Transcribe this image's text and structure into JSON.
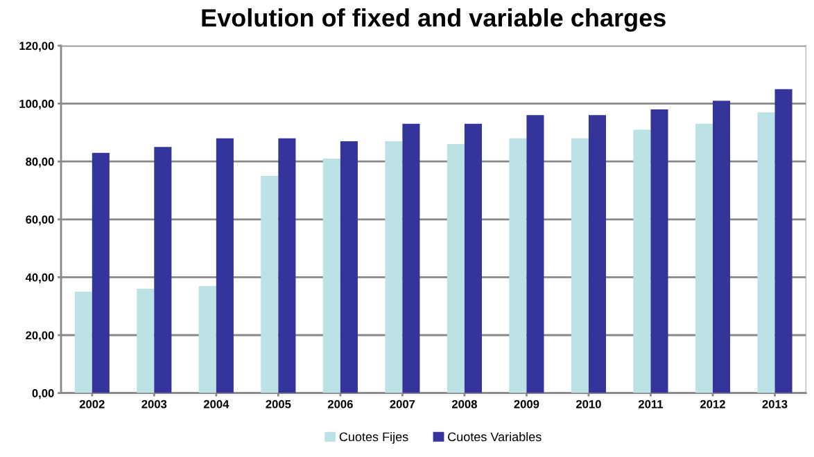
{
  "chart_data": {
    "type": "bar",
    "title": "Evolution of fixed and variable charges",
    "categories": [
      "2002",
      "2003",
      "2004",
      "2005",
      "2006",
      "2007",
      "2008",
      "2009",
      "2010",
      "2011",
      "2012",
      "2013"
    ],
    "series": [
      {
        "name": "Cuotes Fijes",
        "color": "#bce2e6",
        "values": [
          35,
          36,
          37,
          75,
          81,
          87,
          86,
          88,
          88,
          91,
          93,
          97
        ]
      },
      {
        "name": "Cuotes Variables",
        "color": "#34349a",
        "values": [
          83,
          85,
          88,
          88,
          87,
          93,
          93,
          96,
          96,
          98,
          101,
          105
        ]
      }
    ],
    "ylim": [
      0,
      120
    ],
    "yticks": [
      {
        "value": 0,
        "label": "0,00"
      },
      {
        "value": 20,
        "label": "20,00"
      },
      {
        "value": 40,
        "label": "40,00"
      },
      {
        "value": 60,
        "label": "60,00"
      },
      {
        "value": 80,
        "label": "80,00"
      },
      {
        "value": 100,
        "label": "100,00"
      },
      {
        "value": 120,
        "label": "120,00"
      }
    ],
    "grid": "y",
    "legend": "bottom"
  }
}
